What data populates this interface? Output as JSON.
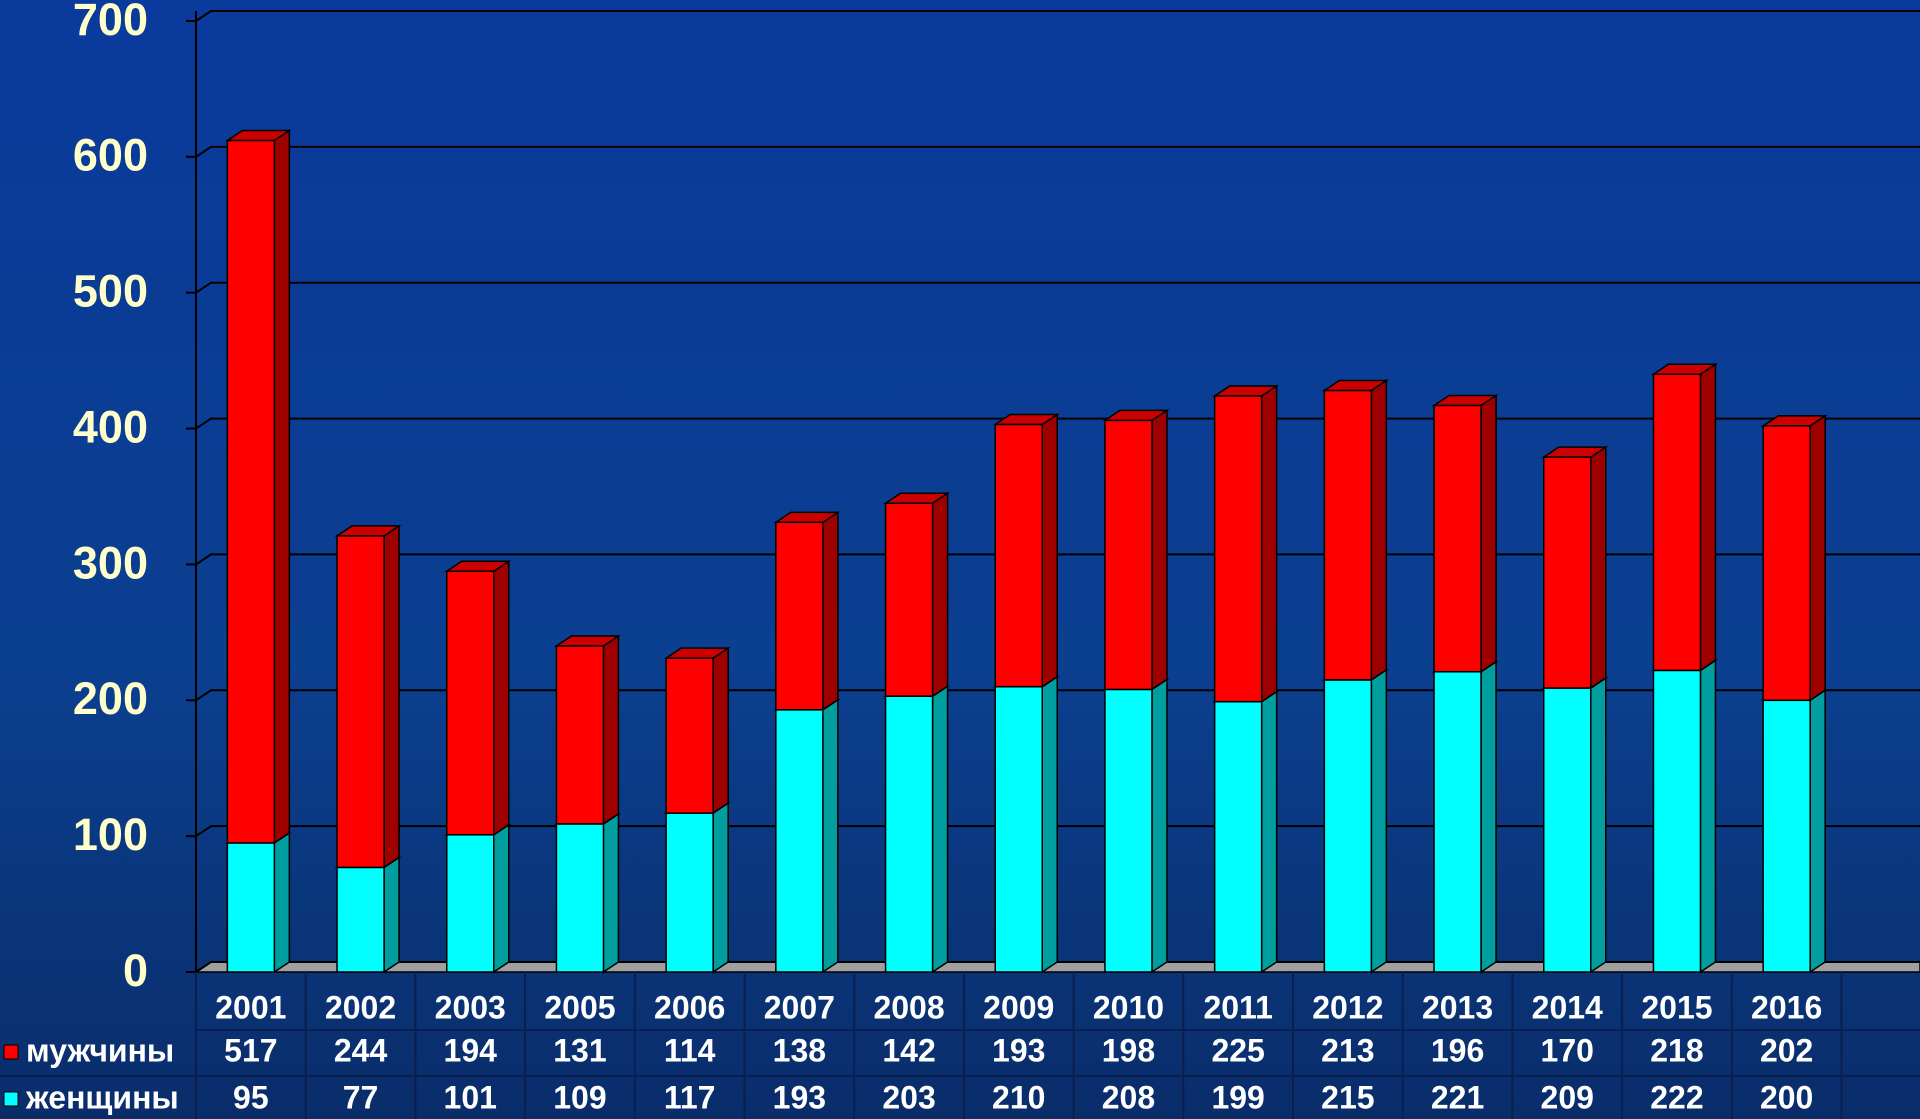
{
  "chart_data": {
    "type": "stacked-bar",
    "categories": [
      "2001",
      "2002",
      "2003",
      "2005",
      "2006",
      "2007",
      "2008",
      "2009",
      "2010",
      "2011",
      "2012",
      "2013",
      "2014",
      "2015",
      "2016"
    ],
    "series": [
      {
        "name": "женщины",
        "color": "#00ffff",
        "values": [
          95,
          77,
          101,
          109,
          117,
          193,
          203,
          210,
          208,
          199,
          215,
          221,
          209,
          222,
          200
        ]
      },
      {
        "name": "мужчины",
        "color": "#ff0000",
        "values": [
          517,
          244,
          194,
          131,
          114,
          138,
          142,
          193,
          198,
          225,
          213,
          196,
          170,
          218,
          202
        ]
      }
    ],
    "ylim": [
      0,
      700
    ],
    "yticks": [
      0,
      100,
      200,
      300,
      400,
      500,
      600,
      700
    ],
    "grid": true
  }
}
